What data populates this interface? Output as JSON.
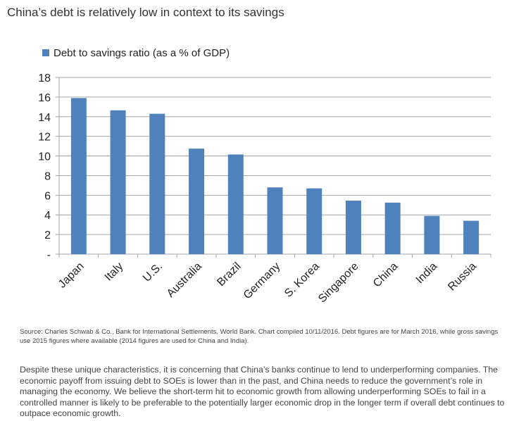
{
  "title": "China’s debt is relatively low in context to its savings",
  "chart_data": {
    "type": "bar",
    "legend": "Debt to savings ratio (as a % of GDP)",
    "legend_position": "top-left",
    "categories": [
      "Japan",
      "Italy",
      "U.S.",
      "Australia",
      "Brazil",
      "Germany",
      "S. Korea",
      "Singapore",
      "China",
      "India",
      "Russia"
    ],
    "values": [
      15.9,
      14.65,
      14.3,
      10.75,
      10.15,
      6.8,
      6.7,
      5.45,
      5.25,
      3.9,
      3.4
    ],
    "ylim": [
      0,
      18
    ],
    "yticks": [
      "-",
      "2",
      "4",
      "6",
      "8",
      "10",
      "12",
      "14",
      "16",
      "18"
    ],
    "grid": true,
    "bar_color": "#4f81bd"
  },
  "source": "Source: Charles Schwab & Co., Bank for International Settlements, World Bank. Chart compiled 10/11/2016. Debt figures are for March 2016, while gross savings use 2015 figures where available (2014 figures are used for China and India).",
  "body": "Despite these unique characteristics, it is concerning that China’s banks continue to lend to underperforming companies. The economic payoff from issuing debt to SOEs is lower than in the past, and China needs to reduce the government’s role in managing the economy. We believe the short-term hit to economic growth from allowing underperforming SOEs to fail in a controlled manner is likely to be preferable to the potentially larger economic drop in the longer term if overall debt continues to outpace economic growth."
}
